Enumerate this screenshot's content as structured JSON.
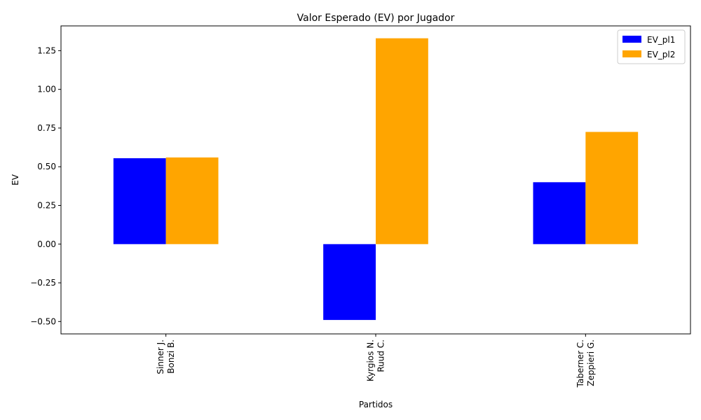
{
  "chart_data": {
    "type": "bar",
    "title": "Valor Esperado (EV) por Jugador",
    "xlabel": "Partidos",
    "ylabel": "EV",
    "categories": [
      [
        "Sinner J.",
        "Bonzi B."
      ],
      [
        "Kyrgios N.",
        "Ruud C."
      ],
      [
        "Taberner C.",
        "Zeppieri G."
      ]
    ],
    "series": [
      {
        "name": "EV_pl1",
        "color": "#0000ff",
        "values": [
          0.555,
          -0.49,
          0.4
        ]
      },
      {
        "name": "EV_pl2",
        "color": "#ffa500",
        "values": [
          0.56,
          1.33,
          0.725
        ]
      }
    ],
    "ylim": [
      -0.58,
      1.41
    ],
    "yticks": [
      "-0.50",
      "-0.25",
      "0.00",
      "0.25",
      "0.50",
      "0.75",
      "1.00",
      "1.25"
    ],
    "legend_position": "top-right",
    "grid": false
  }
}
